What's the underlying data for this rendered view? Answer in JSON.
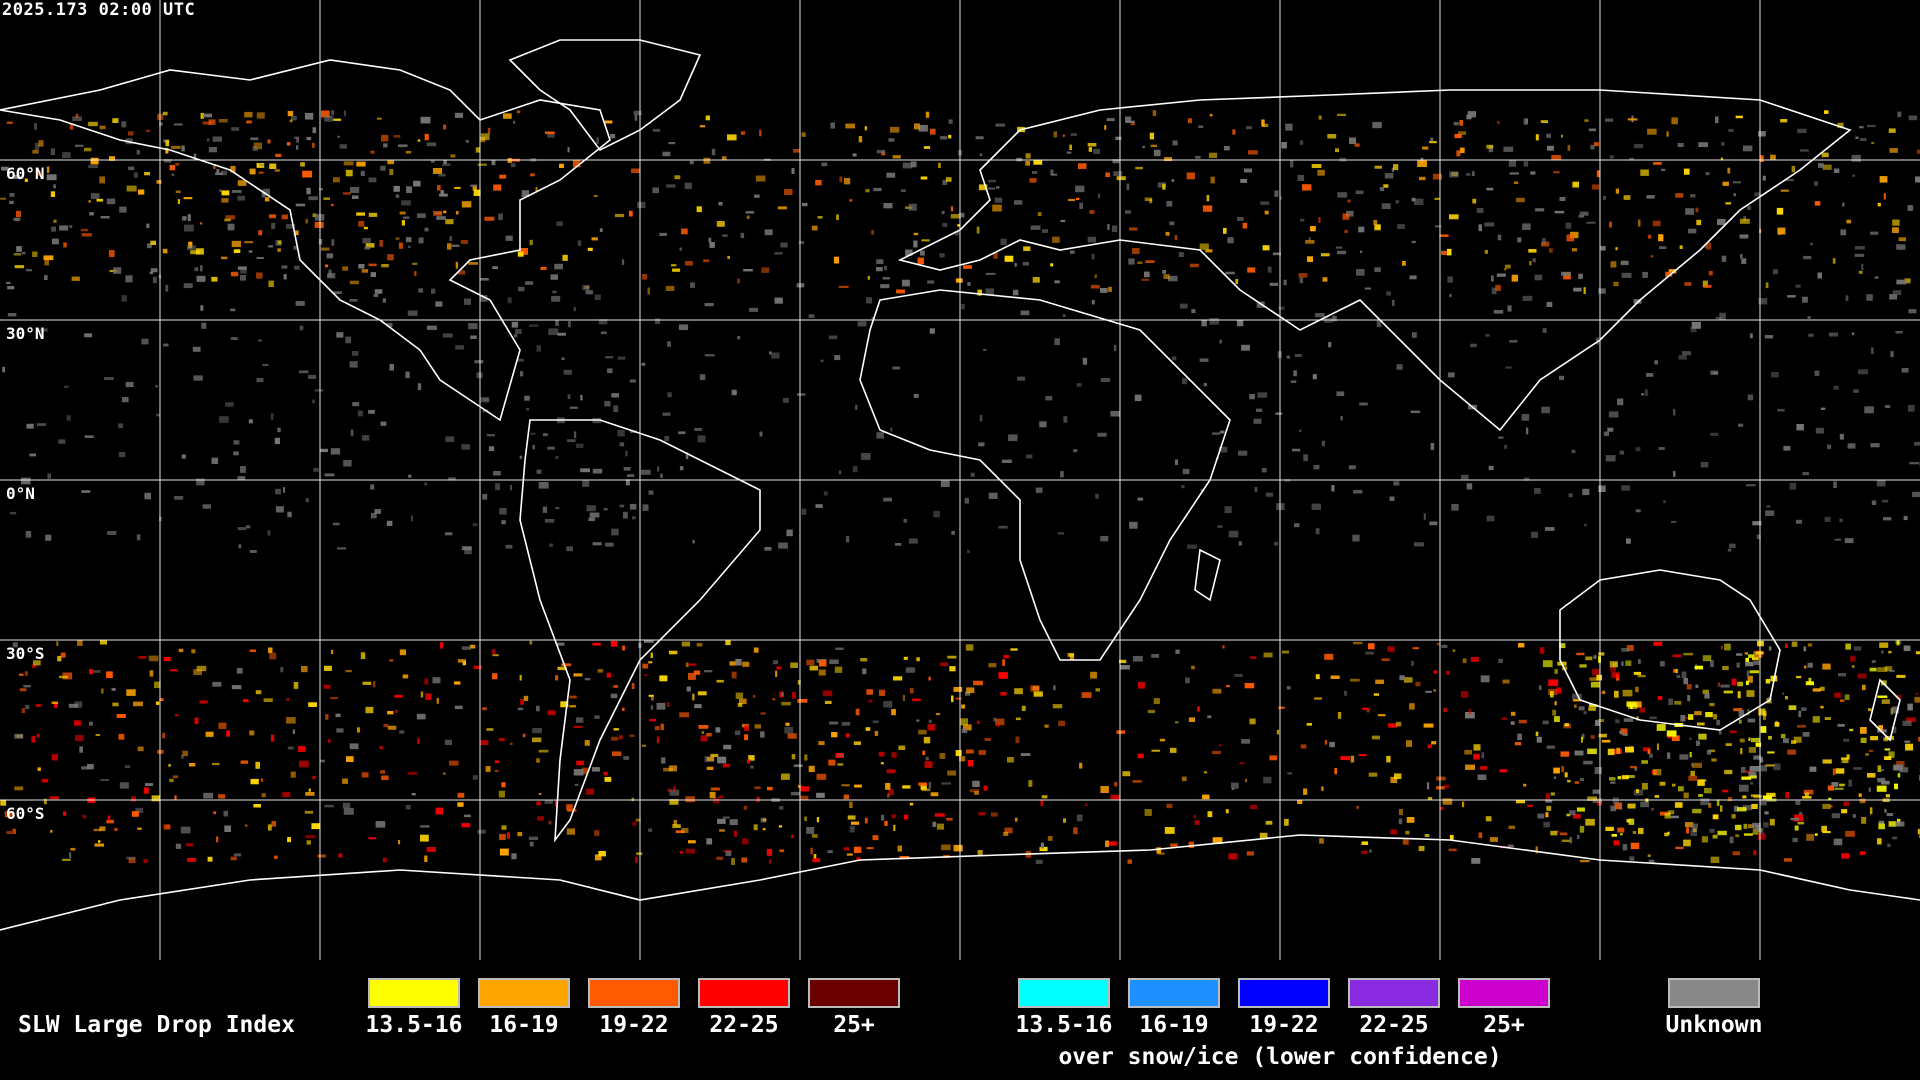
{
  "timestamp": "2025.173 02:00 UTC",
  "lat_labels": [
    "60°N",
    "30°N",
    "0°N",
    "30°S",
    "60°S"
  ],
  "legend": {
    "title": "SLW Large Drop Index",
    "classes": [
      {
        "label": "13.5-16",
        "color": "#ffff00"
      },
      {
        "label": "16-19",
        "color": "#ffa500"
      },
      {
        "label": "19-22",
        "color": "#ff5a00"
      },
      {
        "label": "22-25",
        "color": "#ff0000"
      },
      {
        "label": "25+",
        "color": "#6b0000"
      }
    ],
    "snow_classes": [
      {
        "label": "13.5-16",
        "color": "#00ffff"
      },
      {
        "label": "16-19",
        "color": "#1e90ff"
      },
      {
        "label": "19-22",
        "color": "#0000ff"
      },
      {
        "label": "22-25",
        "color": "#8a2be2"
      },
      {
        "label": "25+",
        "color": "#cc00cc"
      }
    ],
    "snow_note": "over snow/ice (lower confidence)",
    "unknown": {
      "label": "Unknown",
      "color": "#888888"
    }
  }
}
